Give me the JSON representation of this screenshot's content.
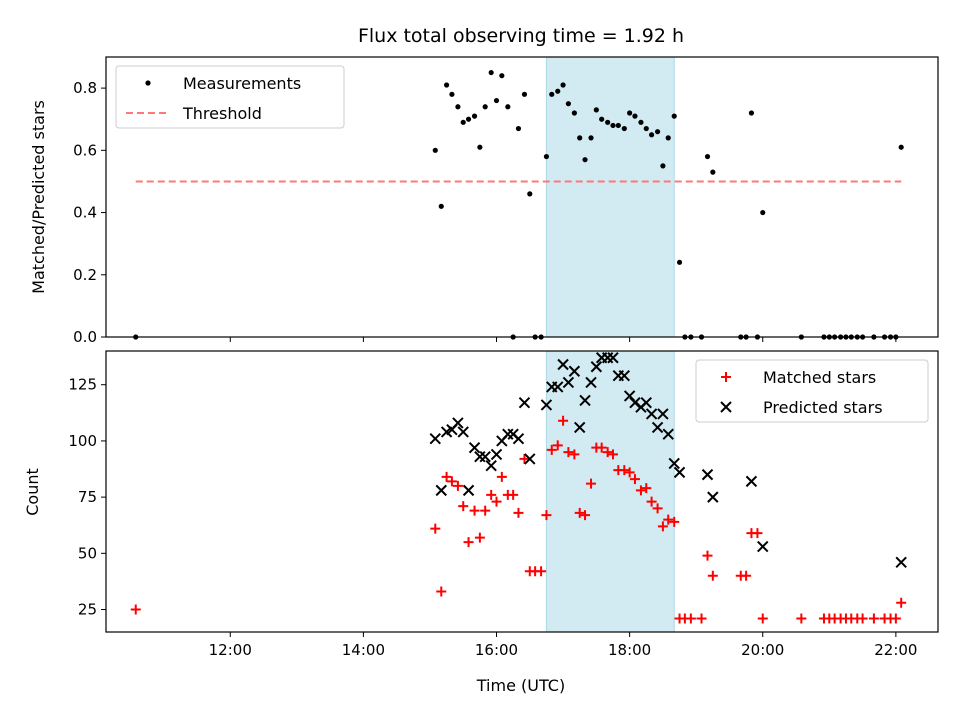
{
  "chart_data": [
    {
      "type": "scatter",
      "title": "Flux total observing time = 1.92 h",
      "xlabel": "",
      "ylabel": "Matched/Predicted stars",
      "xlim": [
        10.133,
        22.633
      ],
      "ylim": [
        0.0,
        0.9
      ],
      "yticks": [
        0.0,
        0.2,
        0.4,
        0.6,
        0.8
      ],
      "xticks": [
        12,
        14,
        16,
        18,
        20,
        22
      ],
      "x_unit": "hours UTC",
      "highlight_span": [
        16.75,
        18.67
      ],
      "highlight_color": "#add8e6",
      "legend_position": "top-left",
      "series": [
        {
          "name": "Measurements",
          "marker": "dot",
          "color": "#000000",
          "points": [
            [
              10.58,
              0.0
            ],
            [
              15.08,
              0.6
            ],
            [
              15.17,
              0.42
            ],
            [
              15.25,
              0.81
            ],
            [
              15.33,
              0.78
            ],
            [
              15.42,
              0.74
            ],
            [
              15.5,
              0.69
            ],
            [
              15.58,
              0.7
            ],
            [
              15.67,
              0.71
            ],
            [
              15.75,
              0.61
            ],
            [
              15.83,
              0.74
            ],
            [
              15.92,
              0.85
            ],
            [
              16.0,
              0.76
            ],
            [
              16.08,
              0.84
            ],
            [
              16.17,
              0.74
            ],
            [
              16.25,
              0.0
            ],
            [
              16.33,
              0.67
            ],
            [
              16.42,
              0.78
            ],
            [
              16.5,
              0.46
            ],
            [
              16.58,
              0.0
            ],
            [
              16.67,
              0.0
            ],
            [
              16.75,
              0.58
            ],
            [
              16.83,
              0.78
            ],
            [
              16.92,
              0.79
            ],
            [
              17.0,
              0.81
            ],
            [
              17.08,
              0.75
            ],
            [
              17.17,
              0.72
            ],
            [
              17.25,
              0.64
            ],
            [
              17.33,
              0.57
            ],
            [
              17.42,
              0.64
            ],
            [
              17.5,
              0.73
            ],
            [
              17.58,
              0.7
            ],
            [
              17.67,
              0.69
            ],
            [
              17.75,
              0.68
            ],
            [
              17.83,
              0.68
            ],
            [
              17.92,
              0.67
            ],
            [
              18.0,
              0.72
            ],
            [
              18.08,
              0.71
            ],
            [
              18.17,
              0.69
            ],
            [
              18.25,
              0.67
            ],
            [
              18.33,
              0.65
            ],
            [
              18.42,
              0.66
            ],
            [
              18.5,
              0.55
            ],
            [
              18.58,
              0.64
            ],
            [
              18.67,
              0.71
            ],
            [
              18.75,
              0.24
            ],
            [
              18.83,
              0.0
            ],
            [
              18.92,
              0.0
            ],
            [
              19.08,
              0.0
            ],
            [
              19.17,
              0.58
            ],
            [
              19.25,
              0.53
            ],
            [
              19.67,
              0.0
            ],
            [
              19.75,
              0.0
            ],
            [
              19.83,
              0.72
            ],
            [
              19.92,
              0.0
            ],
            [
              20.0,
              0.4
            ],
            [
              20.58,
              0.0
            ],
            [
              20.92,
              0.0
            ],
            [
              21.0,
              0.0
            ],
            [
              21.08,
              0.0
            ],
            [
              21.17,
              0.0
            ],
            [
              21.25,
              0.0
            ],
            [
              21.33,
              0.0
            ],
            [
              21.42,
              0.0
            ],
            [
              21.5,
              0.0
            ],
            [
              21.67,
              0.0
            ],
            [
              21.83,
              0.0
            ],
            [
              21.92,
              0.0
            ],
            [
              22.0,
              0.0
            ],
            [
              22.08,
              0.61
            ]
          ]
        },
        {
          "name": "Threshold",
          "marker": "dashed-line",
          "color": "#ff7777",
          "points": [
            [
              10.58,
              0.5
            ],
            [
              22.08,
              0.5
            ]
          ]
        }
      ]
    },
    {
      "type": "scatter",
      "title": "",
      "xlabel": "Time (UTC)",
      "ylabel": "Count",
      "xlim": [
        10.133,
        22.633
      ],
      "ylim": [
        15,
        140
      ],
      "yticks": [
        25,
        50,
        75,
        100,
        125
      ],
      "xticks": [
        12,
        14,
        16,
        18,
        20,
        22
      ],
      "xtick_labels": [
        "12:00",
        "14:00",
        "16:00",
        "18:00",
        "20:00",
        "22:00"
      ],
      "x_unit": "hours UTC",
      "highlight_span": [
        16.75,
        18.67
      ],
      "highlight_color": "#add8e6",
      "legend_position": "top-right",
      "series": [
        {
          "name": "Matched stars",
          "marker": "plus",
          "color": "#ff0000",
          "points": [
            [
              10.58,
              25
            ],
            [
              15.08,
              61
            ],
            [
              15.17,
              33
            ],
            [
              15.25,
              84
            ],
            [
              15.33,
              82
            ],
            [
              15.42,
              80
            ],
            [
              15.5,
              71
            ],
            [
              15.58,
              55
            ],
            [
              15.67,
              69
            ],
            [
              15.75,
              57
            ],
            [
              15.83,
              69
            ],
            [
              15.92,
              76
            ],
            [
              16.0,
              73
            ],
            [
              16.08,
              84
            ],
            [
              16.17,
              76
            ],
            [
              16.25,
              76
            ],
            [
              16.33,
              68
            ],
            [
              16.42,
              92
            ],
            [
              16.5,
              42
            ],
            [
              16.58,
              42
            ],
            [
              16.67,
              42
            ],
            [
              16.75,
              67
            ],
            [
              16.83,
              96
            ],
            [
              16.92,
              98
            ],
            [
              17.0,
              109
            ],
            [
              17.08,
              95
            ],
            [
              17.17,
              94
            ],
            [
              17.25,
              68
            ],
            [
              17.33,
              67
            ],
            [
              17.42,
              81
            ],
            [
              17.5,
              97
            ],
            [
              17.58,
              97
            ],
            [
              17.67,
              95
            ],
            [
              17.75,
              94
            ],
            [
              17.83,
              87
            ],
            [
              17.92,
              87
            ],
            [
              18.0,
              86
            ],
            [
              18.08,
              83
            ],
            [
              18.17,
              78
            ],
            [
              18.25,
              79
            ],
            [
              18.33,
              73
            ],
            [
              18.42,
              70
            ],
            [
              18.5,
              62
            ],
            [
              18.58,
              65
            ],
            [
              18.67,
              64
            ],
            [
              18.75,
              21
            ],
            [
              18.83,
              21
            ],
            [
              18.92,
              21
            ],
            [
              19.08,
              21
            ],
            [
              19.17,
              49
            ],
            [
              19.25,
              40
            ],
            [
              19.67,
              40
            ],
            [
              19.75,
              40
            ],
            [
              19.83,
              59
            ],
            [
              19.92,
              59
            ],
            [
              20.0,
              21
            ],
            [
              20.58,
              21
            ],
            [
              20.92,
              21
            ],
            [
              21.0,
              21
            ],
            [
              21.08,
              21
            ],
            [
              21.17,
              21
            ],
            [
              21.25,
              21
            ],
            [
              21.33,
              21
            ],
            [
              21.42,
              21
            ],
            [
              21.5,
              21
            ],
            [
              21.67,
              21
            ],
            [
              21.83,
              21
            ],
            [
              21.92,
              21
            ],
            [
              22.0,
              21
            ],
            [
              22.08,
              28
            ]
          ]
        },
        {
          "name": "Predicted stars",
          "marker": "x",
          "color": "#000000",
          "points": [
            [
              15.08,
              101
            ],
            [
              15.17,
              78
            ],
            [
              15.25,
              104
            ],
            [
              15.33,
              105
            ],
            [
              15.42,
              108
            ],
            [
              15.5,
              104
            ],
            [
              15.58,
              78
            ],
            [
              15.67,
              97
            ],
            [
              15.75,
              93
            ],
            [
              15.83,
              93
            ],
            [
              15.92,
              89
            ],
            [
              16.0,
              94
            ],
            [
              16.08,
              100
            ],
            [
              16.17,
              103
            ],
            [
              16.25,
              103
            ],
            [
              16.33,
              101
            ],
            [
              16.42,
              117
            ],
            [
              16.5,
              92
            ],
            [
              16.75,
              116
            ],
            [
              16.83,
              124
            ],
            [
              16.92,
              124
            ],
            [
              17.0,
              134
            ],
            [
              17.08,
              126
            ],
            [
              17.17,
              131
            ],
            [
              17.25,
              106
            ],
            [
              17.33,
              118
            ],
            [
              17.42,
              126
            ],
            [
              17.5,
              133
            ],
            [
              17.58,
              137
            ],
            [
              17.67,
              137
            ],
            [
              17.75,
              137
            ],
            [
              17.83,
              129
            ],
            [
              17.92,
              129
            ],
            [
              18.0,
              120
            ],
            [
              18.08,
              117
            ],
            [
              18.17,
              115
            ],
            [
              18.25,
              117
            ],
            [
              18.33,
              112
            ],
            [
              18.42,
              106
            ],
            [
              18.5,
              112
            ],
            [
              18.58,
              103
            ],
            [
              18.67,
              90
            ],
            [
              18.75,
              86
            ],
            [
              19.17,
              85
            ],
            [
              19.25,
              75
            ],
            [
              19.83,
              82
            ],
            [
              20.0,
              53
            ],
            [
              22.08,
              46
            ]
          ]
        }
      ]
    }
  ]
}
